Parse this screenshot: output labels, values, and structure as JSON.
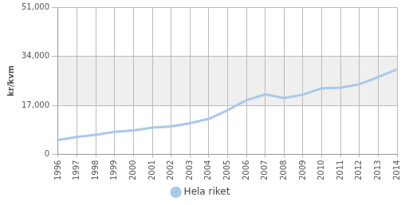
{
  "chart_data": {
    "type": "line",
    "y_label": "kr/kvm",
    "categories": [
      "1996",
      "1997",
      "1998",
      "1999",
      "2000",
      "2001",
      "2002",
      "2003",
      "2004",
      "2005",
      "2006",
      "2007",
      "2008",
      "2009",
      "2010",
      "2011",
      "2012",
      "2013",
      "2014"
    ],
    "series": [
      {
        "name": "Hela riket",
        "color": "#a9c9ea",
        "values": [
          5000,
          6000,
          6800,
          7800,
          8300,
          9300,
          9700,
          10800,
          12300,
          15300,
          18800,
          20800,
          19500,
          20700,
          22900,
          23100,
          24300,
          26800,
          29500
        ]
      }
    ],
    "ylim": [
      0,
      51000
    ],
    "yticks": [
      0,
      {
        "value": 17000,
        "label": "17,000"
      },
      {
        "value": 34000,
        "label": "34,000"
      },
      {
        "value": 51000,
        "label": "51,000"
      }
    ],
    "grid": true,
    "legend": "bottom"
  }
}
